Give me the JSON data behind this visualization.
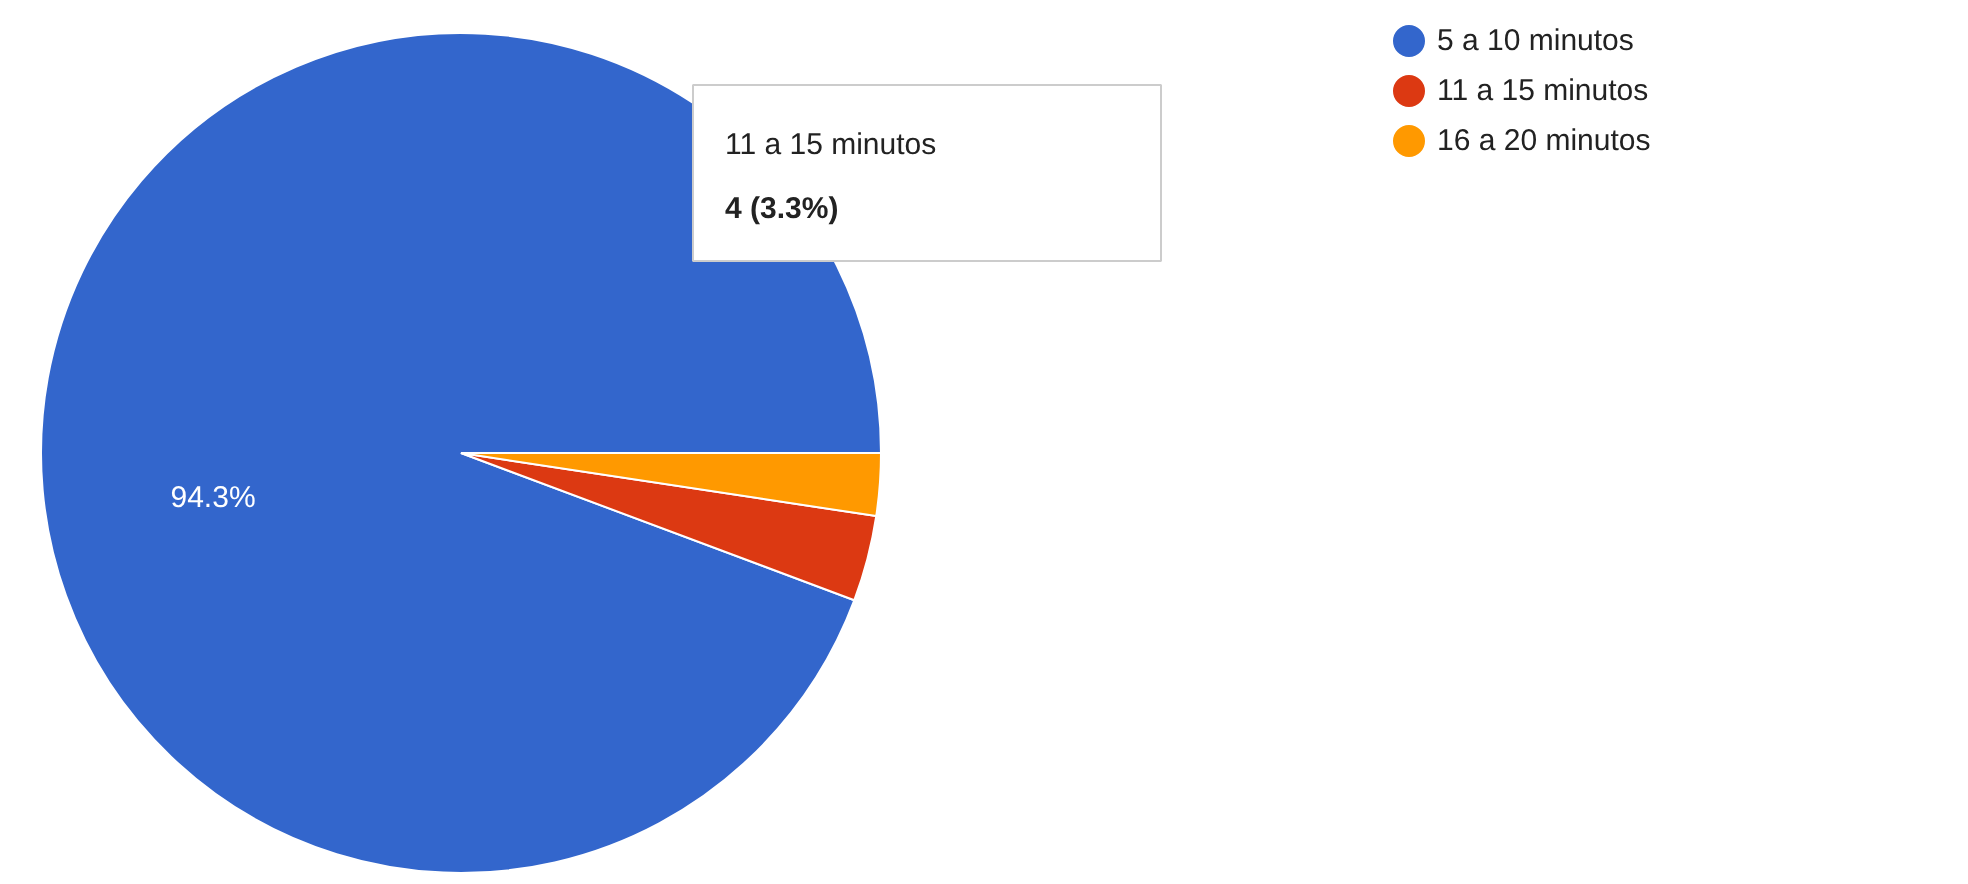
{
  "chart_data": {
    "type": "pie",
    "categories": [
      "5 a 10 minutos",
      "11 a 15 minutos",
      "16 a 20 minutos"
    ],
    "values": [
      94.3,
      3.3,
      2.4
    ],
    "colors": [
      "#3366cc",
      "#dc3912",
      "#ff9900"
    ],
    "value_labels": [
      "94.3%",
      null,
      null
    ],
    "annotations": [
      "11 a 15 minutos",
      "4 (3.3%)"
    ],
    "legend": "right"
  }
}
